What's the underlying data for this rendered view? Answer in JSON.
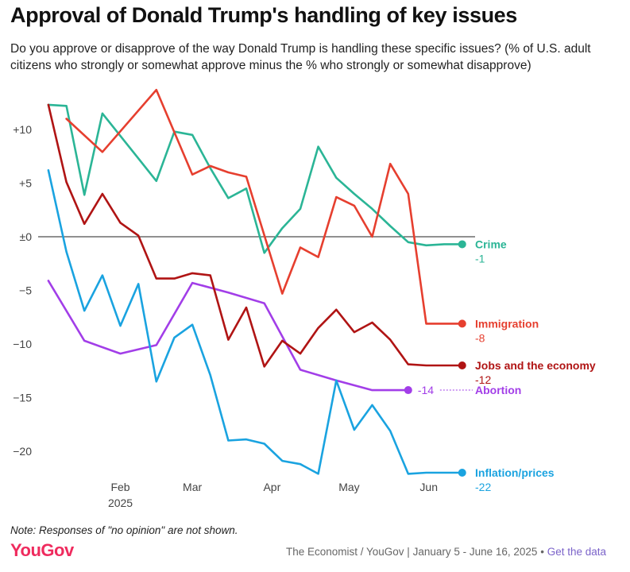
{
  "title": "Approval of Donald Trump's handling of key issues",
  "subtitle": "Do you approve or disapprove of the way Donald Trump is handling these specific issues? (% of U.S. adult citizens who strongly or somewhat approve minus the % who strongly or somewhat disapprove)",
  "note": "Note: Responses of \"no opinion\" are not shown.",
  "logo": "YouGov",
  "source": {
    "text": "The Economist / YouGov | January 5 - June 16, 2025",
    "separator": "•",
    "link": "Get the data"
  },
  "chart_data": {
    "type": "line",
    "ylim": [
      -22,
      13
    ],
    "yticks": [
      10,
      5,
      0,
      -5,
      -10,
      -15,
      -20
    ],
    "ytick_labels": [
      "+10",
      "+5",
      "±0",
      "−5",
      "−10",
      "−15",
      "−20"
    ],
    "xlim": [
      1,
      167
    ],
    "xticks": [
      {
        "day": 33,
        "label": "Feb",
        "sublabel": "2025"
      },
      {
        "day": 61,
        "label": "Mar"
      },
      {
        "day": 92,
        "label": "Apr"
      },
      {
        "day": 122,
        "label": "May"
      },
      {
        "day": 153,
        "label": "Jun"
      }
    ],
    "x_unit": "day of year 2025",
    "series": [
      {
        "name": "Crime",
        "color": "#2bb596",
        "end_value": -1,
        "end_value_label": "-1",
        "x": [
          5,
          12,
          19,
          26,
          40,
          47,
          54,
          61,
          68,
          75,
          82,
          89,
          96,
          103,
          110,
          117,
          124,
          131,
          138,
          145,
          152,
          159,
          166
        ],
        "y": [
          12.3,
          12.2,
          3.9,
          11.5,
          7.3,
          5.2,
          9.8,
          9.5,
          6.4,
          3.6,
          4.5,
          -1.5,
          0.8,
          2.6,
          8.4,
          5.5,
          4.0,
          2.6,
          1.0,
          -0.5,
          -0.8,
          -0.7,
          -0.7
        ]
      },
      {
        "name": "Immigration",
        "color": "#e63f2f",
        "end_value": -8,
        "end_value_label": "-8",
        "x": [
          12,
          26,
          47,
          61,
          68,
          75,
          82,
          96,
          103,
          110,
          117,
          124,
          131,
          138,
          145,
          152,
          166
        ],
        "y": [
          11.0,
          7.9,
          13.7,
          5.8,
          6.6,
          6.0,
          5.6,
          -5.3,
          -1.0,
          -1.9,
          3.7,
          2.9,
          0.0,
          6.8,
          4.0,
          -8.1,
          -8.1
        ]
      },
      {
        "name": "Jobs and the economy",
        "color": "#b01414",
        "end_value": -12,
        "end_value_label": "-12",
        "x": [
          5,
          12,
          19,
          26,
          33,
          40,
          47,
          54,
          61,
          68,
          75,
          82,
          89,
          96,
          103,
          110,
          117,
          124,
          131,
          138,
          145,
          152,
          159,
          166
        ],
        "y": [
          12.3,
          5.1,
          1.2,
          4.0,
          1.3,
          0.1,
          -3.9,
          -3.9,
          -3.4,
          -3.6,
          -9.6,
          -6.6,
          -12.1,
          -9.7,
          -10.9,
          -8.5,
          -6.8,
          -8.9,
          -8.0,
          -9.6,
          -11.9,
          -12.0,
          -12.0,
          -12.0
        ]
      },
      {
        "name": "Abortion",
        "color": "#a23ee8",
        "end_value": -14,
        "end_value_label": "-14",
        "x": [
          5,
          19,
          33,
          47,
          61,
          75,
          89,
          103,
          117,
          131,
          145
        ],
        "y": [
          -4.1,
          -9.7,
          -10.9,
          -10.1,
          -4.3,
          -5.2,
          -6.2,
          -12.4,
          -13.4,
          -14.3,
          -14.3
        ]
      },
      {
        "name": "Inflation/prices",
        "color": "#1aa3e0",
        "end_value": -22,
        "end_value_label": "-22",
        "x": [
          5,
          12,
          19,
          26,
          33,
          40,
          47,
          54,
          61,
          68,
          75,
          82,
          89,
          96,
          103,
          110,
          117,
          124,
          131,
          138,
          145,
          152,
          159,
          166
        ],
        "y": [
          6.2,
          -1.4,
          -6.9,
          -3.6,
          -8.3,
          -4.4,
          -13.5,
          -9.4,
          -8.2,
          -12.9,
          -19.0,
          -18.9,
          -19.3,
          -20.9,
          -21.2,
          -22.1,
          -13.4,
          -18.0,
          -15.7,
          -18.1,
          -22.1,
          -22.0,
          -22.0,
          -22.0
        ]
      }
    ],
    "abortion_label_connector": "dotted"
  }
}
